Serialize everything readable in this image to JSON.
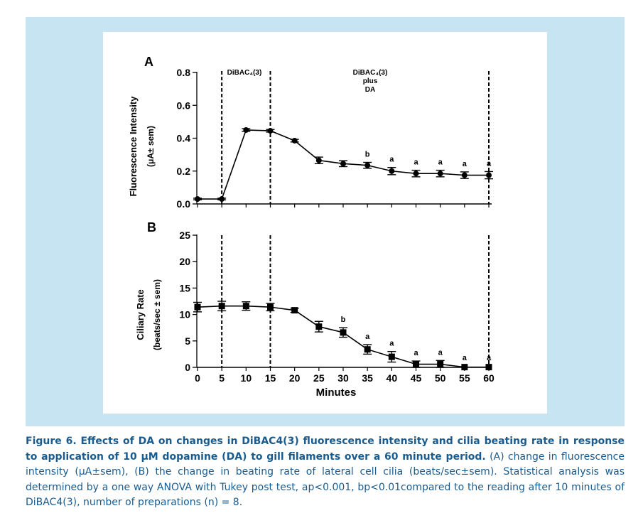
{
  "chart_data": [
    {
      "panel": "A",
      "type": "line",
      "ylabel": "Fluorescence Intensity",
      "ylabel_units": "(μA± sem)",
      "ylim": [
        0,
        0.8
      ],
      "yticks": [
        "0.0",
        "0.2",
        "0.4",
        "0.6",
        "0.8"
      ],
      "x": [
        0,
        5,
        10,
        15,
        20,
        25,
        30,
        35,
        40,
        45,
        50,
        55,
        60
      ],
      "values": [
        0.03,
        0.03,
        0.45,
        0.445,
        0.385,
        0.265,
        0.245,
        0.235,
        0.2,
        0.185,
        0.185,
        0.175,
        0.175
      ],
      "errors": [
        0.005,
        0.005,
        0.008,
        0.008,
        0.008,
        0.02,
        0.018,
        0.018,
        0.022,
        0.02,
        0.02,
        0.02,
        0.022
      ],
      "sig": [
        "",
        "",
        "",
        "",
        "",
        "",
        "",
        "b",
        "a",
        "a",
        "a",
        "a",
        "a"
      ],
      "annotations": [
        "DiBAC₄(3)",
        "DiBAC₄(3)",
        "plus",
        "DA"
      ]
    },
    {
      "panel": "B",
      "type": "line",
      "ylabel": "Ciliary Rate",
      "ylabel_units": "(beats/sec ± sem)",
      "xlabel": "Minutes",
      "ylim": [
        0,
        25
      ],
      "yticks": [
        "0",
        "5",
        "10",
        "15",
        "20",
        "25"
      ],
      "xticks": [
        "0",
        "5",
        "10",
        "15",
        "20",
        "25",
        "30",
        "35",
        "40",
        "45",
        "50",
        "55",
        "60"
      ],
      "x": [
        0,
        5,
        10,
        15,
        20,
        25,
        30,
        35,
        40,
        45,
        50,
        55,
        60
      ],
      "values": [
        11.4,
        11.6,
        11.6,
        11.4,
        10.8,
        7.7,
        6.6,
        3.4,
        2.0,
        0.6,
        0.6,
        0.05,
        0.05
      ],
      "errors": [
        0.9,
        0.9,
        0.8,
        0.7,
        0.4,
        1.0,
        0.9,
        0.9,
        1.0,
        0.6,
        0.7,
        0.2,
        0.2
      ],
      "sig": [
        "",
        "",
        "",
        "",
        "",
        "",
        "b",
        "a",
        "a",
        "a",
        "a",
        "a",
        "a"
      ]
    }
  ],
  "caption": {
    "bold": "Figure 6. Effects of DA on changes in DiBAC4(3) fluorescence intensity and cilia beating rate in response to application of 10 μM dopamine (DA) to gill filaments over a 60 minute period.",
    "text": " (A) change in fluorescence intensity (μA±sem), (B) the change in beating rate of lateral cell cilia (beats/sec±sem). Statistical analysis was determined by a one way ANOVA with Tukey post test, ap<0.001, bp<0.01compared to the reading after 10 minutes of DiBAC4(3), number of preparations (n) = 8."
  },
  "colors": {
    "panel_bg": "#c7e4f3",
    "caption_text": "#1a5b8f",
    "ink": "#000000"
  }
}
